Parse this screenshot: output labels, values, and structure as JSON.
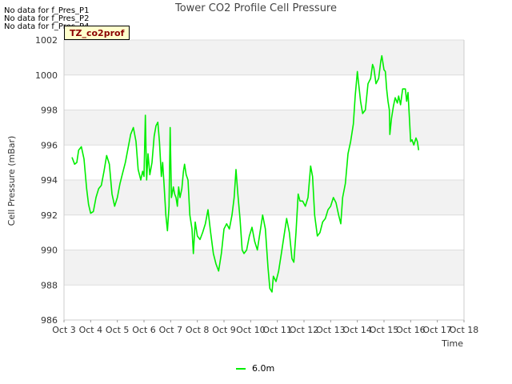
{
  "no_data_messages": [
    "No data for f_Pres_P1",
    "No data for f_Pres_P2",
    "No data for f_Pres_P4"
  ],
  "tag_label": "TZ_co2prof",
  "colors": {
    "line": "#00ee00",
    "band": "#f2f2f2",
    "grid": "#dddddd",
    "axis": "#cccccc"
  },
  "chart_data": {
    "type": "line",
    "title": "Tower CO2 Profile Cell Pressure",
    "xlabel": "Time",
    "ylabel": "Cell Pressure (mBar)",
    "xlim": [
      3,
      18
    ],
    "ylim": [
      986,
      1002
    ],
    "x_ticks": [
      {
        "value": 3,
        "label": "Oct 3"
      },
      {
        "value": 4,
        "label": "Oct 4"
      },
      {
        "value": 5,
        "label": "Oct 5"
      },
      {
        "value": 6,
        "label": "Oct 6"
      },
      {
        "value": 7,
        "label": "Oct 7"
      },
      {
        "value": 8,
        "label": "Oct 8"
      },
      {
        "value": 9,
        "label": "Oct 9"
      },
      {
        "value": 10,
        "label": "Oct 10"
      },
      {
        "value": 11,
        "label": "Oct 11"
      },
      {
        "value": 12,
        "label": "Oct 12"
      },
      {
        "value": 13,
        "label": "Oct 13"
      },
      {
        "value": 14,
        "label": "Oct 14"
      },
      {
        "value": 15,
        "label": "Oct 15"
      },
      {
        "value": 16,
        "label": "Oct 16"
      },
      {
        "value": 17,
        "label": "Oct 17"
      },
      {
        "value": 18,
        "label": "Oct 18"
      }
    ],
    "y_ticks": [
      {
        "value": 986,
        "label": "986"
      },
      {
        "value": 988,
        "label": "988"
      },
      {
        "value": 990,
        "label": "990"
      },
      {
        "value": 992,
        "label": "992"
      },
      {
        "value": 994,
        "label": "994"
      },
      {
        "value": 996,
        "label": "996"
      },
      {
        "value": 998,
        "label": "998"
      },
      {
        "value": 1000,
        "label": "1000"
      },
      {
        "value": 1002,
        "label": "1002"
      }
    ],
    "legend_position": "bottom-center",
    "series": [
      {
        "name": "6.0m",
        "points": [
          [
            3.3,
            995.3
          ],
          [
            3.4,
            994.9
          ],
          [
            3.48,
            995.0
          ],
          [
            3.55,
            995.7
          ],
          [
            3.65,
            995.9
          ],
          [
            3.75,
            995.2
          ],
          [
            3.85,
            993.5
          ],
          [
            3.92,
            992.6
          ],
          [
            4.0,
            992.1
          ],
          [
            4.1,
            992.2
          ],
          [
            4.2,
            993.0
          ],
          [
            4.3,
            993.5
          ],
          [
            4.4,
            993.7
          ],
          [
            4.5,
            994.5
          ],
          [
            4.6,
            995.4
          ],
          [
            4.7,
            994.9
          ],
          [
            4.8,
            993.2
          ],
          [
            4.9,
            992.5
          ],
          [
            5.0,
            993.0
          ],
          [
            5.1,
            993.8
          ],
          [
            5.2,
            994.4
          ],
          [
            5.3,
            995.0
          ],
          [
            5.4,
            995.8
          ],
          [
            5.5,
            996.6
          ],
          [
            5.6,
            997.0
          ],
          [
            5.7,
            996.2
          ],
          [
            5.78,
            994.6
          ],
          [
            5.88,
            994.0
          ],
          [
            5.95,
            994.5
          ],
          [
            6.0,
            994.2
          ],
          [
            6.05,
            997.7
          ],
          [
            6.1,
            994.0
          ],
          [
            6.15,
            995.5
          ],
          [
            6.22,
            994.3
          ],
          [
            6.3,
            995.0
          ],
          [
            6.38,
            996.5
          ],
          [
            6.45,
            997.1
          ],
          [
            6.52,
            997.3
          ],
          [
            6.58,
            996.2
          ],
          [
            6.65,
            994.2
          ],
          [
            6.7,
            995.0
          ],
          [
            6.75,
            993.8
          ],
          [
            6.82,
            992.0
          ],
          [
            6.88,
            991.1
          ],
          [
            6.94,
            992.5
          ],
          [
            6.98,
            997.0
          ],
          [
            7.03,
            993.0
          ],
          [
            7.1,
            993.6
          ],
          [
            7.15,
            993.2
          ],
          [
            7.2,
            993.0
          ],
          [
            7.25,
            992.5
          ],
          [
            7.3,
            993.6
          ],
          [
            7.35,
            993.0
          ],
          [
            7.42,
            993.5
          ],
          [
            7.48,
            994.5
          ],
          [
            7.52,
            994.9
          ],
          [
            7.58,
            994.3
          ],
          [
            7.65,
            994.0
          ],
          [
            7.72,
            992.0
          ],
          [
            7.8,
            991.2
          ],
          [
            7.85,
            989.8
          ],
          [
            7.92,
            991.6
          ],
          [
            8.0,
            990.8
          ],
          [
            8.1,
            990.6
          ],
          [
            8.2,
            991.0
          ],
          [
            8.3,
            991.5
          ],
          [
            8.4,
            992.3
          ],
          [
            8.5,
            991.0
          ],
          [
            8.6,
            989.8
          ],
          [
            8.7,
            989.2
          ],
          [
            8.8,
            988.8
          ],
          [
            8.9,
            989.8
          ],
          [
            9.0,
            991.2
          ],
          [
            9.1,
            991.5
          ],
          [
            9.2,
            991.2
          ],
          [
            9.3,
            992.0
          ],
          [
            9.38,
            993.0
          ],
          [
            9.45,
            994.6
          ],
          [
            9.52,
            993.2
          ],
          [
            9.6,
            991.8
          ],
          [
            9.68,
            990.0
          ],
          [
            9.75,
            989.8
          ],
          [
            9.85,
            990.0
          ],
          [
            9.95,
            990.8
          ],
          [
            10.05,
            991.3
          ],
          [
            10.15,
            990.5
          ],
          [
            10.25,
            990.0
          ],
          [
            10.35,
            991.0
          ],
          [
            10.45,
            992.0
          ],
          [
            10.55,
            991.2
          ],
          [
            10.65,
            989.0
          ],
          [
            10.72,
            987.8
          ],
          [
            10.8,
            987.6
          ],
          [
            10.85,
            988.5
          ],
          [
            10.95,
            988.2
          ],
          [
            11.05,
            988.8
          ],
          [
            11.15,
            989.8
          ],
          [
            11.25,
            990.8
          ],
          [
            11.35,
            991.8
          ],
          [
            11.45,
            991.0
          ],
          [
            11.55,
            989.5
          ],
          [
            11.62,
            989.3
          ],
          [
            11.7,
            991.0
          ],
          [
            11.78,
            993.2
          ],
          [
            11.85,
            992.8
          ],
          [
            11.95,
            992.8
          ],
          [
            12.05,
            992.5
          ],
          [
            12.15,
            993.0
          ],
          [
            12.25,
            994.8
          ],
          [
            12.32,
            994.2
          ],
          [
            12.4,
            992.0
          ],
          [
            12.5,
            990.8
          ],
          [
            12.6,
            991.0
          ],
          [
            12.7,
            991.6
          ],
          [
            12.8,
            991.8
          ],
          [
            12.9,
            992.3
          ],
          [
            13.0,
            992.5
          ],
          [
            13.1,
            993.0
          ],
          [
            13.2,
            992.7
          ],
          [
            13.3,
            992.0
          ],
          [
            13.38,
            991.5
          ],
          [
            13.45,
            993.0
          ],
          [
            13.55,
            993.8
          ],
          [
            13.65,
            995.5
          ],
          [
            13.75,
            996.2
          ],
          [
            13.85,
            997.2
          ],
          [
            13.92,
            998.8
          ],
          [
            14.0,
            1000.2
          ],
          [
            14.05,
            999.5
          ],
          [
            14.12,
            998.5
          ],
          [
            14.2,
            997.8
          ],
          [
            14.3,
            998.0
          ],
          [
            14.4,
            999.5
          ],
          [
            14.5,
            999.8
          ],
          [
            14.57,
            1000.6
          ],
          [
            14.62,
            1000.4
          ],
          [
            14.7,
            999.5
          ],
          [
            14.8,
            999.8
          ],
          [
            14.88,
            1000.8
          ],
          [
            14.92,
            1001.1
          ],
          [
            15.0,
            1000.3
          ],
          [
            15.05,
            1000.2
          ],
          [
            15.1,
            999.2
          ],
          [
            15.15,
            998.5
          ],
          [
            15.2,
            998.0
          ],
          [
            15.22,
            996.6
          ],
          [
            15.28,
            997.5
          ],
          [
            15.35,
            998.2
          ],
          [
            15.42,
            998.7
          ],
          [
            15.5,
            998.4
          ],
          [
            15.55,
            998.8
          ],
          [
            15.62,
            998.3
          ],
          [
            15.7,
            999.2
          ],
          [
            15.8,
            999.2
          ],
          [
            15.85,
            998.5
          ],
          [
            15.9,
            999.0
          ],
          [
            15.95,
            997.6
          ],
          [
            16.0,
            996.2
          ],
          [
            16.05,
            996.3
          ],
          [
            16.12,
            996.0
          ],
          [
            16.2,
            996.4
          ],
          [
            16.25,
            996.2
          ],
          [
            16.3,
            995.7
          ]
        ]
      }
    ]
  }
}
